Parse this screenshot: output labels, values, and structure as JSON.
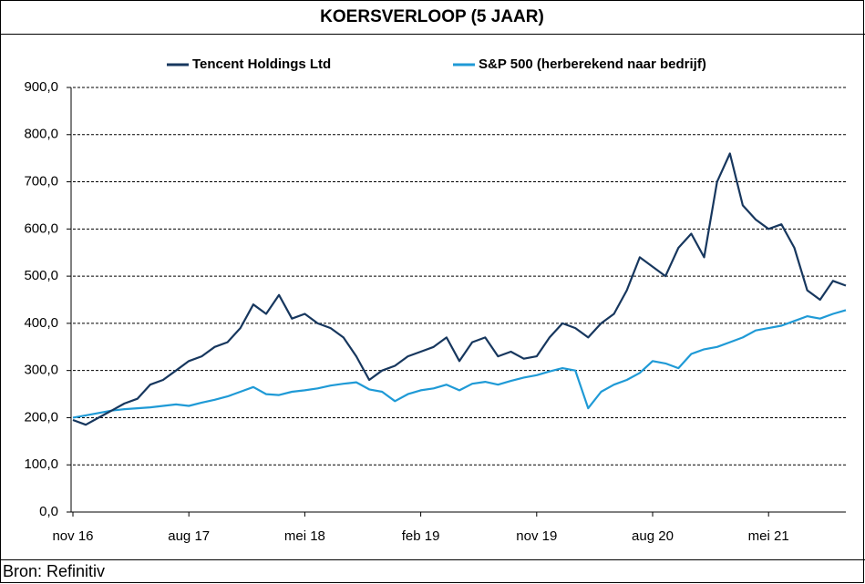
{
  "chart_data": {
    "type": "line",
    "title": "KOERSVERLOOP (5 JAAR)",
    "source": "Bron: Refinitiv",
    "categories": [
      "nov 16",
      null,
      null,
      null,
      null,
      null,
      null,
      null,
      null,
      "aug 17",
      null,
      null,
      null,
      null,
      null,
      null,
      null,
      null,
      "mei 18",
      null,
      null,
      null,
      null,
      null,
      null,
      null,
      null,
      "feb 19",
      null,
      null,
      null,
      null,
      null,
      null,
      null,
      null,
      "nov 19",
      null,
      null,
      null,
      null,
      null,
      null,
      null,
      null,
      "aug 20",
      null,
      null,
      null,
      null,
      null,
      null,
      null,
      null,
      "mei 21",
      null,
      null,
      null,
      null,
      null,
      null
    ],
    "series": [
      {
        "name": "Tencent Holdings Ltd",
        "color": "#17375e",
        "values": [
          195,
          185,
          200,
          215,
          230,
          240,
          270,
          280,
          300,
          320,
          330,
          350,
          360,
          390,
          440,
          420,
          460,
          410,
          420,
          400,
          390,
          370,
          330,
          280,
          300,
          310,
          330,
          340,
          350,
          370,
          320,
          360,
          370,
          330,
          340,
          325,
          330,
          370,
          400,
          390,
          370,
          400,
          420,
          470,
          540,
          520,
          500,
          560,
          590,
          540,
          700,
          760,
          650,
          620,
          600,
          610,
          560,
          470,
          450,
          490,
          480
        ]
      },
      {
        "name": "S&P 500 (herberekend naar bedrijf)",
        "color": "#1f9ad6",
        "values": [
          200,
          205,
          210,
          215,
          218,
          220,
          222,
          225,
          228,
          225,
          232,
          238,
          245,
          255,
          265,
          250,
          248,
          255,
          258,
          262,
          268,
          272,
          275,
          260,
          255,
          235,
          250,
          258,
          262,
          270,
          258,
          272,
          276,
          270,
          278,
          285,
          290,
          298,
          305,
          300,
          220,
          255,
          270,
          280,
          295,
          320,
          315,
          305,
          335,
          345,
          350,
          360,
          370,
          385,
          390,
          395,
          405,
          415,
          410,
          420,
          428
        ]
      }
    ],
    "ylim": [
      0,
      900
    ],
    "yticks": [
      {
        "value": 0,
        "label": "0,0"
      },
      {
        "value": 100,
        "label": "100,0"
      },
      {
        "value": 200,
        "label": "200,0"
      },
      {
        "value": 300,
        "label": "300,0"
      },
      {
        "value": 400,
        "label": "400,0"
      },
      {
        "value": 500,
        "label": "500,0"
      },
      {
        "value": 600,
        "label": "600,0"
      },
      {
        "value": 700,
        "label": "700,0"
      },
      {
        "value": 800,
        "label": "800,0"
      },
      {
        "value": 900,
        "label": "900,0"
      }
    ],
    "grid": true,
    "legend": "top"
  }
}
